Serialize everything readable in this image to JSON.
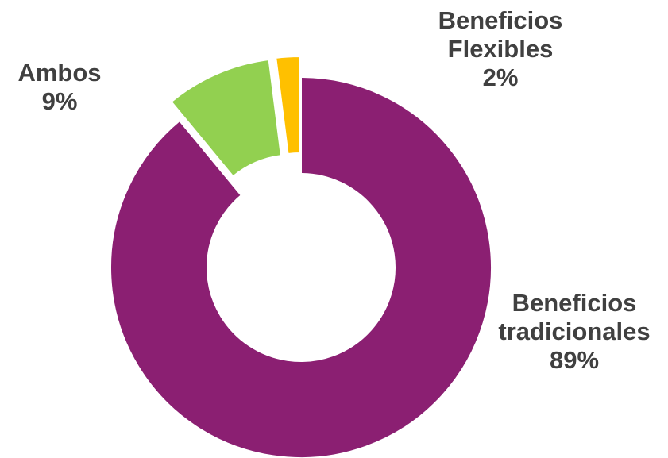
{
  "chart_data": {
    "type": "pie",
    "style": "donut",
    "slices": [
      {
        "label_lines": [
          "Beneficios",
          "tradicionales"
        ],
        "percent_label": "89%",
        "value": 89,
        "color": "#8B1F72",
        "exploded": false
      },
      {
        "label_lines": [
          "Ambos"
        ],
        "percent_label": "9%",
        "value": 9,
        "color": "#92D050",
        "exploded": true
      },
      {
        "label_lines": [
          "Beneficios",
          "Flexibles"
        ],
        "percent_label": "2%",
        "value": 2,
        "color": "#FFC000",
        "exploded": true
      }
    ],
    "legend": "none"
  }
}
